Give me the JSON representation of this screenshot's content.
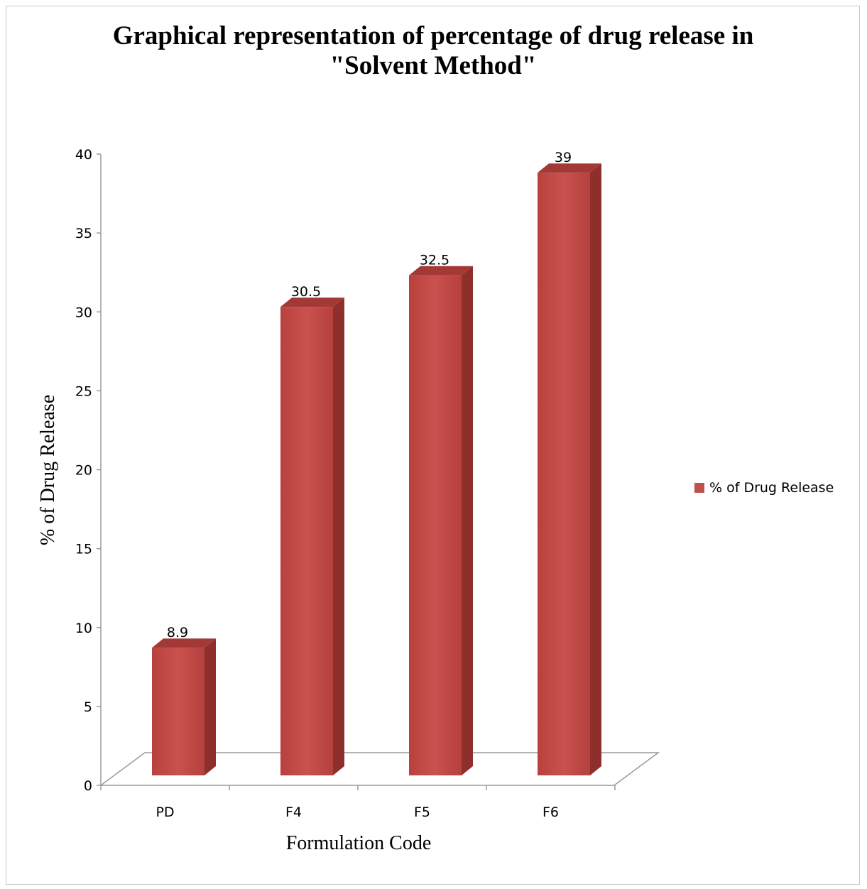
{
  "chart_data": {
    "type": "bar",
    "style": "3d-column",
    "title": "Graphical representation of percentage of drug release in \"Solvent Method\"",
    "xlabel": "Formulation  Code",
    "ylabel": "% of Drug Release",
    "categories": [
      "PD",
      "F4",
      "F5",
      "F6"
    ],
    "series": [
      {
        "name": "% of Drug Release",
        "values": [
          8.9,
          30.5,
          32.5,
          39
        ],
        "color": "#c0504d"
      }
    ],
    "data_labels": [
      "8.9",
      "30.5",
      "32.5",
      "39"
    ],
    "yticks": [
      "0",
      "5",
      "10",
      "15",
      "20",
      "25",
      "30",
      "35",
      "40"
    ],
    "ylim": [
      0,
      40
    ],
    "grid": false,
    "legend_position": "right"
  }
}
